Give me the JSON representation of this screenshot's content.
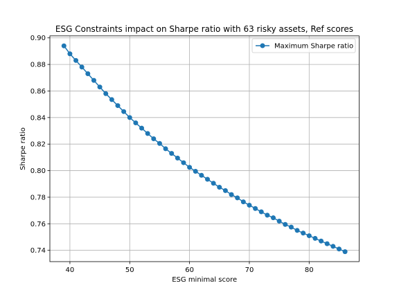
{
  "chart_data": {
    "type": "line",
    "title": "ESG Constraints impact on Sharpe ratio with 63 risky assets, Ref scores",
    "xlabel": "ESG minimal score",
    "ylabel": "Sharpe ratio",
    "xlim": [
      36.65,
      88.35
    ],
    "ylim": [
      0.7315,
      0.9015
    ],
    "xticks": [
      40,
      50,
      60,
      70,
      80
    ],
    "xtick_labels": [
      "40",
      "50",
      "60",
      "70",
      "80"
    ],
    "yticks": [
      0.74,
      0.76,
      0.78,
      0.8,
      0.82,
      0.84,
      0.86,
      0.88,
      0.9
    ],
    "ytick_labels": [
      "0.74",
      "0.76",
      "0.78",
      "0.80",
      "0.82",
      "0.84",
      "0.86",
      "0.88",
      "0.90"
    ],
    "grid": true,
    "legend": {
      "position": "top-right",
      "entries": [
        "Maximum Sharpe ratio"
      ]
    },
    "colors": {
      "series": "#1f77b4",
      "grid": "#b0b0b0",
      "axes": "#000000"
    },
    "series": [
      {
        "name": "Maximum Sharpe ratio",
        "marker": "circle",
        "x": [
          39,
          40,
          41,
          42,
          43,
          44,
          45,
          46,
          47,
          48,
          49,
          50,
          51,
          52,
          53,
          54,
          55,
          56,
          57,
          58,
          59,
          60,
          61,
          62,
          63,
          64,
          65,
          66,
          67,
          68,
          69,
          70,
          71,
          72,
          73,
          74,
          75,
          76,
          77,
          78,
          79,
          80,
          81,
          82,
          83,
          84,
          85,
          86
        ],
        "y": [
          0.894,
          0.888,
          0.883,
          0.878,
          0.873,
          0.868,
          0.863,
          0.858,
          0.8535,
          0.849,
          0.8445,
          0.84,
          0.836,
          0.832,
          0.828,
          0.824,
          0.8205,
          0.8165,
          0.813,
          0.8095,
          0.806,
          0.8025,
          0.7995,
          0.7965,
          0.7935,
          0.7905,
          0.7875,
          0.785,
          0.782,
          0.7795,
          0.7765,
          0.774,
          0.7715,
          0.769,
          0.7665,
          0.7645,
          0.762,
          0.7595,
          0.7575,
          0.755,
          0.753,
          0.751,
          0.749,
          0.747,
          0.745,
          0.743,
          0.741,
          0.739
        ]
      }
    ]
  }
}
